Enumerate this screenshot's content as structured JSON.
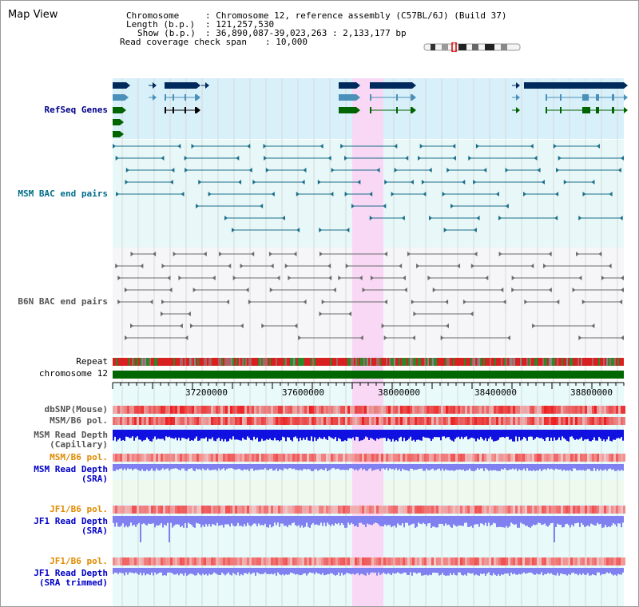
{
  "header": {
    "title": "Map View",
    "chromosome_key": "Chromosome",
    "chromosome_value": ": Chromosome 12, reference assembly (C57BL/6J) (Build 37)",
    "length_key": "Length (b.p.)",
    "length_value": ": 121,257,530",
    "show_key": "Show (b.p.)",
    "show_value": ": 36,890,087-39,023,263 : 2,133,177 bp",
    "coverage_key": "Read coverage check span",
    "coverage_value": ": 10,000"
  },
  "tracks": {
    "refseq": "RefSeq Genes",
    "msm_bac": "MSM BAC end pairs",
    "b6n_bac": "B6N BAC end pairs",
    "repeat": "Repeat",
    "chromosome": "chromosome 12",
    "dbsnp": "dbSNP(Mouse)",
    "msm_b6_pol": "MSM/B6 pol.",
    "msm_depth_cap_1": "MSM Read Depth",
    "msm_depth_cap_2": "(Capillary)",
    "msm_b6_pol_sra": "MSM/B6 pol.",
    "msm_depth_sra_1": "MSM Read Depth",
    "msm_depth_sra_2": "(SRA)",
    "jf1_b6_pol": "JF1/B6 pol.",
    "jf1_depth_sra_1": "JF1 Read Depth",
    "jf1_depth_sra_2": "(SRA)",
    "jf1_b6_pol_trim": "JF1/B6 pol.",
    "jf1_depth_trim_1": "JF1 Read Depth",
    "jf1_depth_trim_2": "(SRA trimmed)"
  },
  "axis": {
    "ticks": [
      "37200000",
      "37600000",
      "38000000",
      "38400000",
      "38800000"
    ]
  },
  "colors": {
    "highlight": "#f8d8f4",
    "refseq_bg": "#d8f0fa",
    "navy": "#002a5c",
    "steel": "#4a90b8",
    "green": "#006400",
    "chromosome": "#006600",
    "depth_cap": "#1010e0",
    "depth_sra": "#8080f0"
  },
  "icons": {
    "ideogram": "chromosome-ideogram-icon"
  }
}
